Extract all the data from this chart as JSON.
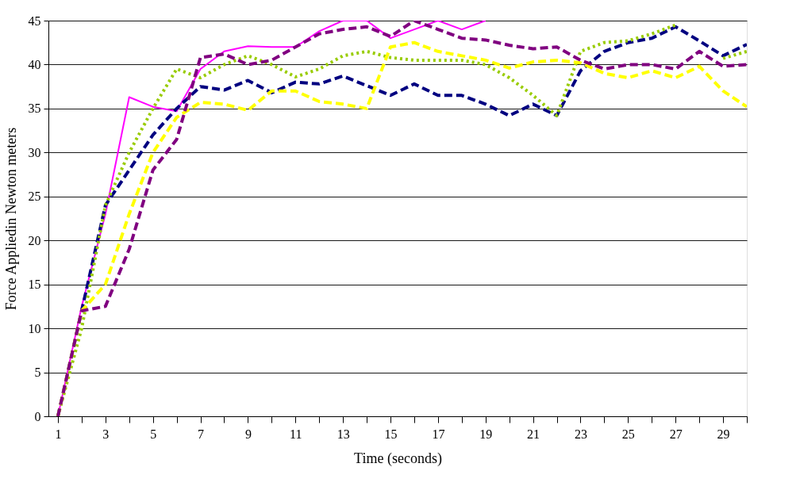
{
  "chart_data": {
    "type": "line",
    "xlabel": "Time (seconds)",
    "ylabel": "Force Appliedin Newton meters",
    "x": [
      1,
      2,
      3,
      4,
      5,
      6,
      7,
      8,
      9,
      10,
      11,
      12,
      13,
      14,
      15,
      16,
      17,
      18,
      19,
      20,
      21,
      22,
      23,
      24,
      25,
      26,
      27,
      28,
      29,
      30
    ],
    "xlim": [
      0.6,
      30
    ],
    "ylim": [
      0,
      45
    ],
    "xticks": [
      1,
      {
        "value": 2,
        "label": null
      },
      3,
      {
        "value": 4,
        "label": null
      },
      5,
      {
        "value": 6,
        "label": null
      },
      7,
      {
        "value": 8,
        "label": null
      },
      9,
      {
        "value": 10,
        "label": null
      },
      11,
      {
        "value": 12,
        "label": null
      },
      13,
      {
        "value": 14,
        "label": null
      },
      15,
      {
        "value": 16,
        "label": null
      },
      17,
      {
        "value": 18,
        "label": null
      },
      19,
      {
        "value": 20,
        "label": null
      },
      21,
      {
        "value": 22,
        "label": null
      },
      23,
      {
        "value": 24,
        "label": null
      },
      25,
      {
        "value": 26,
        "label": null
      },
      27,
      {
        "value": 28,
        "label": null
      },
      29,
      {
        "value": 30,
        "label": null
      }
    ],
    "yticks": [
      0,
      5,
      10,
      15,
      20,
      25,
      30,
      35,
      40,
      45
    ],
    "grid": "y",
    "legend": false,
    "marker": "none",
    "series": [
      {
        "color": "#ff00ff",
        "line_style": "solid",
        "values": [
          0,
          12.5,
          23,
          36.3,
          35.2,
          34.7,
          39.5,
          41.5,
          42.1,
          42,
          42,
          43.8,
          45,
          45,
          43,
          44,
          45,
          44,
          45,
          null,
          null,
          null,
          null,
          null,
          null,
          null,
          null,
          null,
          null,
          null
        ]
      },
      {
        "color": "#000080",
        "line_style": "dashed",
        "values": [
          0,
          12,
          24,
          28,
          32,
          35,
          37.5,
          37.1,
          38.2,
          36.8,
          38,
          37.8,
          38.7,
          37.6,
          36.5,
          37.8,
          36.5,
          36.5,
          35.5,
          34.2,
          35.5,
          34.2,
          39.3,
          41.5,
          42.5,
          43,
          44.3,
          42.7,
          41,
          42.3
        ]
      },
      {
        "color": "#99cc00",
        "line_style": "dotted",
        "values": [
          0,
          10,
          24,
          30,
          35,
          39.5,
          38.5,
          40,
          41,
          40,
          38.6,
          39.5,
          41,
          41.5,
          40.8,
          40.5,
          40.5,
          40.5,
          40,
          38.5,
          36.5,
          34.2,
          41.5,
          42.5,
          42.7,
          43.5,
          44.5,
          null,
          40.7,
          41.5
        ]
      },
      {
        "color": "#ffff00",
        "line_style": "dashed",
        "values": [
          0,
          12,
          15,
          23,
          30,
          34,
          35.7,
          35.5,
          34.8,
          37,
          37,
          35.8,
          35.5,
          35,
          42,
          42.5,
          41.5,
          41,
          40.5,
          39.6,
          40.3,
          40.5,
          40.2,
          39,
          38.5,
          39.3,
          38.5,
          39.8,
          37,
          35.2
        ]
      },
      {
        "color": "#800080",
        "line_style": "dashed",
        "values": [
          0,
          12,
          12.5,
          19,
          28,
          31.5,
          40.8,
          41.2,
          40,
          40.5,
          42,
          43.5,
          44,
          44.3,
          43.2,
          45,
          44,
          43,
          42.8,
          42.2,
          41.8,
          42,
          40.5,
          39.5,
          40,
          40,
          39.5,
          41.5,
          39.8,
          40
        ]
      }
    ]
  }
}
